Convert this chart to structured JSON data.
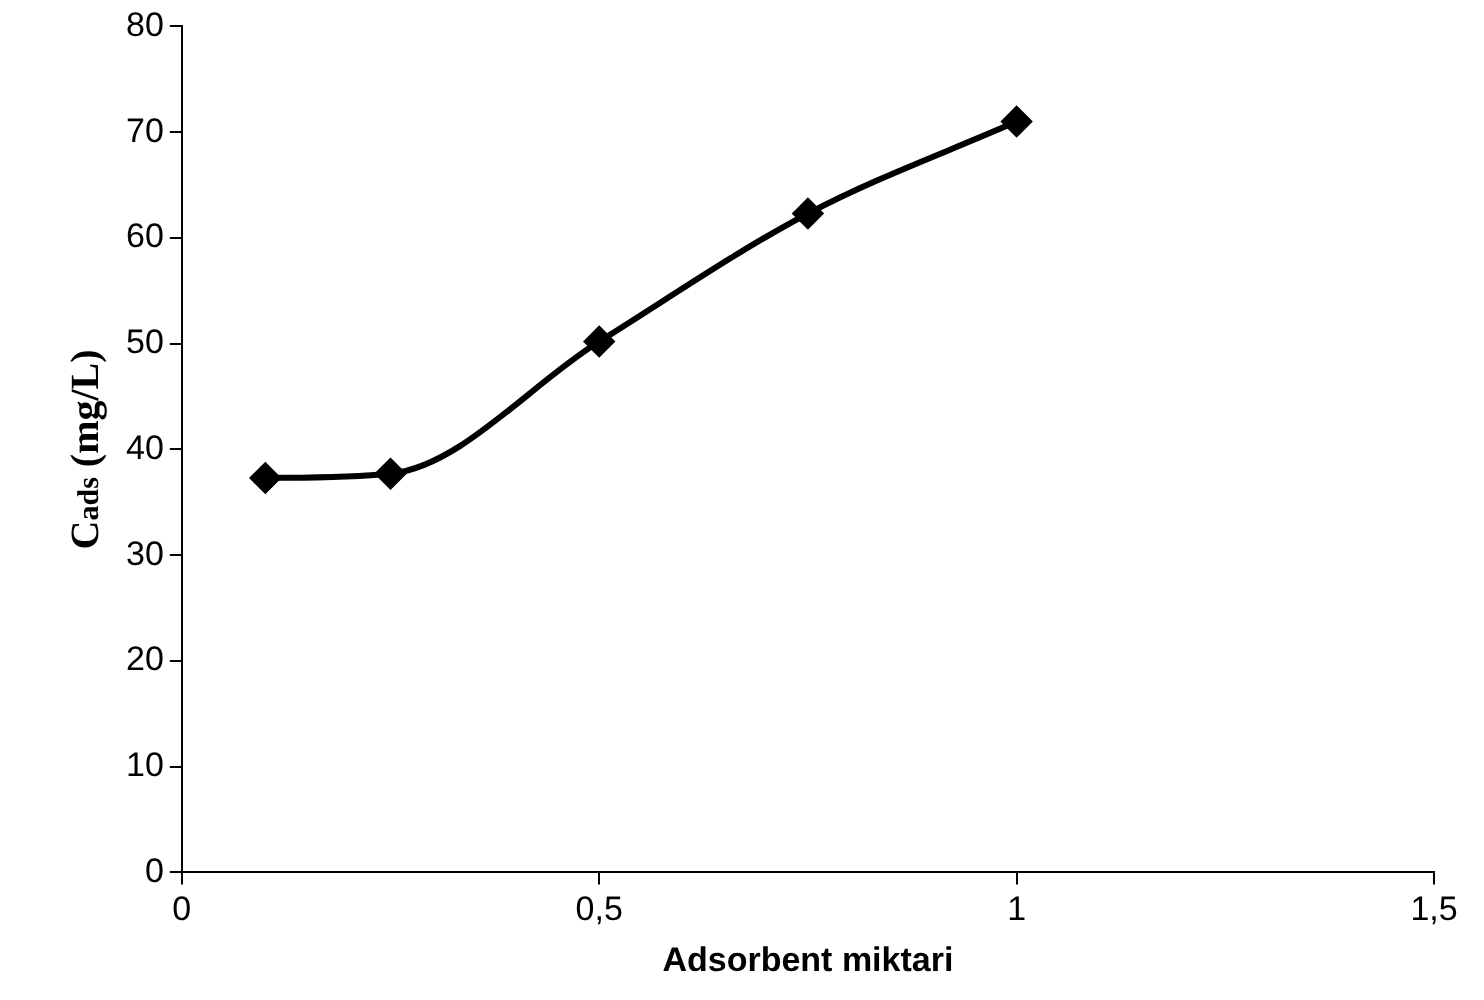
{
  "chart_data": {
    "type": "line",
    "xlabel": "Adsorbent miktari",
    "ylabel": "C$_{ads}$ (mg/L)",
    "x": [
      0.1,
      0.25,
      0.5,
      0.75,
      1
    ],
    "series": [
      {
        "color": "#000000",
        "values": [
          37.3,
          37.7,
          50.2,
          62.3,
          71.0
        ]
      }
    ],
    "xlim": [
      0,
      1.5
    ],
    "xticks": [
      0,
      {
        "value": 0.5,
        "label": "0,5"
      },
      1,
      {
        "value": 1.5,
        "label": "1,5"
      }
    ],
    "ylim": [
      0,
      80
    ],
    "yticks": [
      0,
      10,
      20,
      30,
      40,
      50,
      60,
      70,
      80
    ],
    "grid": false,
    "legend": false,
    "marker": "diamond",
    "line_style": "solid"
  }
}
